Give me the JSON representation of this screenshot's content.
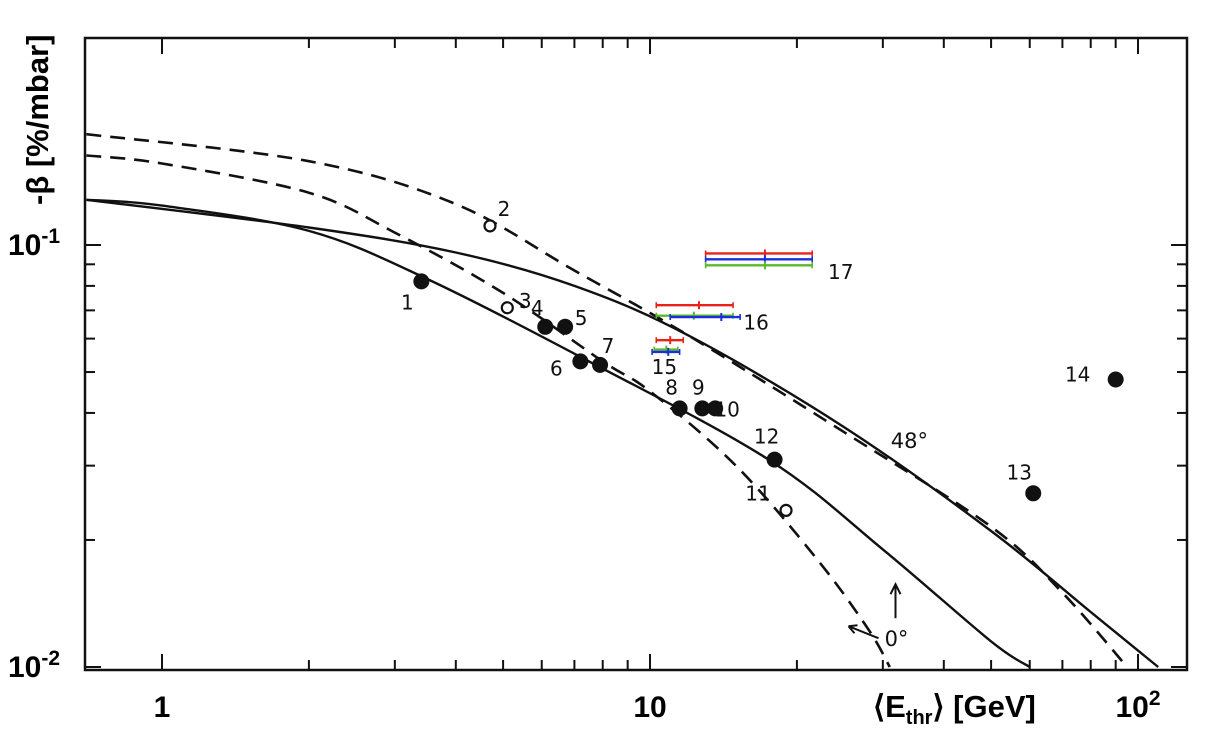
{
  "chart_data": {
    "type": "scatter",
    "xscale": "log",
    "yscale": "log",
    "xlim": [
      0.7,
      125
    ],
    "ylim": [
      0.01,
      0.18
    ],
    "xlabel": "⟨E",
    "xlabel_sub": "thr",
    "xlabel_tail": "⟩ [GeV]",
    "ylabel": "-β [%/mbar]",
    "x_ticks": [
      {
        "value": 1,
        "base": "1",
        "exp": ""
      },
      {
        "value": 10,
        "base": "10",
        "exp": ""
      },
      {
        "value": 100,
        "base": "10",
        "exp": "2"
      }
    ],
    "y_ticks": [
      {
        "value": 0.1,
        "base": "10",
        "exp": "-1"
      },
      {
        "value": 0.01,
        "base": "10",
        "exp": "-2"
      }
    ],
    "points": [
      {
        "label": "1",
        "x": 3.4,
        "y": 0.082,
        "filled": true
      },
      {
        "label": "2",
        "x": 4.7,
        "y": 0.111,
        "filled": false
      },
      {
        "label": "3",
        "x": 5.1,
        "y": 0.071,
        "filled": false
      },
      {
        "label": "4",
        "x": 6.1,
        "y": 0.064,
        "filled": true
      },
      {
        "label": "5",
        "x": 6.7,
        "y": 0.064,
        "filled": true
      },
      {
        "label": "6",
        "x": 7.2,
        "y": 0.053,
        "filled": true
      },
      {
        "label": "7",
        "x": 7.9,
        "y": 0.052,
        "filled": true
      },
      {
        "label": "8",
        "x": 11.5,
        "y": 0.041,
        "filled": true
      },
      {
        "label": "9",
        "x": 12.8,
        "y": 0.041,
        "filled": true
      },
      {
        "label": "10",
        "x": 13.6,
        "y": 0.041,
        "filled": true
      },
      {
        "label": "11",
        "x": 19,
        "y": 0.0235,
        "filled": false
      },
      {
        "label": "12",
        "x": 18,
        "y": 0.031,
        "filled": true
      },
      {
        "label": "13",
        "x": 61,
        "y": 0.0258,
        "filled": true
      },
      {
        "label": "14",
        "x": 90,
        "y": 0.048,
        "filled": true
      }
    ],
    "error_bars": [
      {
        "label": "15",
        "rows": [
          {
            "color": "#e8241a",
            "x": 11.0,
            "xmin": 10.3,
            "xmax": 11.7,
            "y": 0.0595
          },
          {
            "color": "#5ab82c",
            "x": 10.8,
            "xmin": 10.2,
            "xmax": 11.4,
            "y": 0.0565
          },
          {
            "color": "#1a2fd8",
            "x": 10.9,
            "xmin": 10.1,
            "xmax": 11.5,
            "y": 0.0558
          }
        ]
      },
      {
        "label": "16",
        "rows": [
          {
            "color": "#e8241a",
            "x": 12.6,
            "xmin": 10.3,
            "xmax": 14.8,
            "y": 0.072
          },
          {
            "color": "#5ab82c",
            "x": 12.3,
            "xmin": 10.3,
            "xmax": 14.8,
            "y": 0.068
          },
          {
            "color": "#1a2fd8",
            "x": 14.0,
            "xmin": 11.0,
            "xmax": 15.3,
            "y": 0.0675
          }
        ]
      },
      {
        "label": "17",
        "rows": [
          {
            "color": "#e8241a",
            "x": 17.2,
            "xmin": 13.0,
            "xmax": 21.5,
            "y": 0.0955
          },
          {
            "color": "#1a2fd8",
            "x": 17.2,
            "xmin": 13.0,
            "xmax": 21.5,
            "y": 0.0925
          },
          {
            "color": "#5ab82c",
            "x": 17.2,
            "xmin": 13.0,
            "xmax": 21.5,
            "y": 0.0895
          }
        ]
      }
    ],
    "curves": [
      {
        "style": "solid",
        "points": [
          [
            0.7,
            0.128
          ],
          [
            1,
            0.124
          ],
          [
            2,
            0.108
          ],
          [
            3.5,
            0.083
          ],
          [
            7.5,
            0.053
          ],
          [
            17.5,
            0.031
          ],
          [
            30,
            0.019
          ],
          [
            50,
            0.0115
          ],
          [
            60,
            0.01
          ]
        ]
      },
      {
        "style": "solid",
        "points": [
          [
            0.7,
            0.128
          ],
          [
            2,
            0.11
          ],
          [
            4,
            0.096
          ],
          [
            7,
            0.08
          ],
          [
            12,
            0.061
          ],
          [
            25,
            0.037
          ],
          [
            50,
            0.021
          ],
          [
            80,
            0.0135
          ],
          [
            110,
            0.01
          ]
        ]
      },
      {
        "style": "dashed",
        "points": [
          [
            0.7,
            0.163
          ],
          [
            1,
            0.156
          ],
          [
            2,
            0.133
          ],
          [
            3,
            0.107
          ],
          [
            5,
            0.077
          ],
          [
            8,
            0.053
          ],
          [
            10,
            0.045
          ],
          [
            15,
            0.03
          ],
          [
            22,
            0.018
          ],
          [
            28,
            0.0123
          ],
          [
            31,
            0.01
          ]
        ]
      },
      {
        "style": "dashed",
        "points": [
          [
            0.7,
            0.183
          ],
          [
            2,
            0.158
          ],
          [
            4,
            0.125
          ],
          [
            7,
            0.087
          ],
          [
            12,
            0.061
          ],
          [
            25,
            0.036
          ],
          [
            50,
            0.0215
          ],
          [
            70,
            0.015
          ],
          [
            95,
            0.01
          ]
        ]
      }
    ],
    "annotations": [
      {
        "text": "48°",
        "x": 34,
        "y": 0.033
      },
      {
        "text": "0°",
        "x": 32,
        "y": 0.0112
      }
    ],
    "colors": {
      "red": "#e8241a",
      "green": "#5ab82c",
      "blue": "#1a2fd8",
      "ink": "#111111"
    }
  }
}
